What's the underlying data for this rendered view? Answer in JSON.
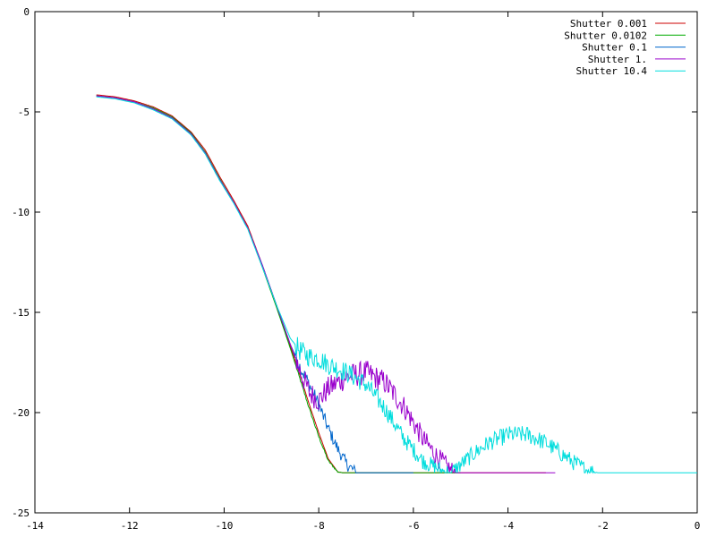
{
  "chart_data": {
    "type": "line",
    "title": "",
    "xlabel": "",
    "ylabel": "",
    "xlim": [
      -14,
      0
    ],
    "ylim": [
      -25,
      0
    ],
    "xticks": [
      -14,
      -12,
      -10,
      -8,
      -6,
      -4,
      -2,
      0
    ],
    "yticks": [
      0,
      -5,
      -10,
      -15,
      -20,
      -25
    ],
    "grid": false,
    "legend_position": "top-right",
    "series": [
      {
        "name": "Shutter 0.001",
        "color": "#cc0000",
        "noise": 0,
        "x": [
          -12.7,
          -12.3,
          -11.9,
          -11.5,
          -11.1,
          -10.7,
          -10.4,
          -10.1,
          -9.8,
          -9.5,
          -9.2,
          -8.9,
          -8.6,
          -8.4,
          -8.2,
          -8.0,
          -7.8,
          -7.6,
          -7.5,
          -3.2
        ],
        "y": [
          -4.15,
          -4.25,
          -4.45,
          -4.75,
          -5.2,
          -6.0,
          -6.9,
          -8.2,
          -9.4,
          -10.7,
          -12.6,
          -14.6,
          -16.7,
          -18.1,
          -19.6,
          -21.0,
          -22.3,
          -22.95,
          -23.0,
          -23.0
        ]
      },
      {
        "name": "Shutter 0.0102",
        "color": "#00aa00",
        "noise": 0.05,
        "x": [
          -12.7,
          -12.3,
          -11.9,
          -11.5,
          -11.1,
          -10.7,
          -10.4,
          -10.1,
          -9.8,
          -9.5,
          -9.2,
          -8.9,
          -8.6,
          -8.4,
          -8.2,
          -8.0,
          -7.8,
          -7.6,
          -7.5,
          -5.0
        ],
        "y": [
          -4.2,
          -4.3,
          -4.5,
          -4.8,
          -5.25,
          -6.05,
          -7.0,
          -8.3,
          -9.5,
          -10.8,
          -12.7,
          -14.7,
          -16.8,
          -18.3,
          -19.8,
          -21.2,
          -22.4,
          -22.95,
          -23.0,
          -23.0
        ]
      },
      {
        "name": "Shutter 0.1",
        "color": "#0066cc",
        "noise": 0.3,
        "x": [
          -12.7,
          -12.3,
          -11.9,
          -11.5,
          -11.1,
          -10.7,
          -10.4,
          -10.1,
          -9.8,
          -9.5,
          -9.2,
          -8.9,
          -8.6,
          -8.4,
          -8.2,
          -8.0,
          -7.8,
          -7.6,
          -7.4,
          -7.2,
          -6.0
        ],
        "y": [
          -4.2,
          -4.3,
          -4.5,
          -4.85,
          -5.3,
          -6.1,
          -7.05,
          -8.35,
          -9.5,
          -10.8,
          -12.6,
          -14.6,
          -16.6,
          -17.7,
          -18.6,
          -19.6,
          -20.8,
          -21.8,
          -22.6,
          -23.0,
          -23.0
        ]
      },
      {
        "name": "Shutter 1.",
        "color": "#9900cc",
        "noise": 0.5,
        "x": [
          -12.7,
          -12.3,
          -11.9,
          -11.5,
          -11.1,
          -10.7,
          -10.4,
          -10.1,
          -9.8,
          -9.5,
          -9.2,
          -8.9,
          -8.6,
          -8.4,
          -8.2,
          -8.0,
          -7.8,
          -7.4,
          -7.0,
          -6.6,
          -6.2,
          -5.8,
          -5.5,
          -5.2,
          -5.1,
          -3.0
        ],
        "y": [
          -4.2,
          -4.3,
          -4.5,
          -4.85,
          -5.3,
          -6.1,
          -7.05,
          -8.35,
          -9.5,
          -10.8,
          -12.6,
          -14.6,
          -16.6,
          -17.9,
          -19.0,
          -19.4,
          -18.8,
          -18.2,
          -18.0,
          -18.5,
          -19.7,
          -21.3,
          -22.2,
          -22.9,
          -23.0,
          -23.0
        ]
      },
      {
        "name": "Shutter 10.4",
        "color": "#00dddd",
        "noise": 0.4,
        "x": [
          -12.7,
          -12.3,
          -11.9,
          -11.5,
          -11.1,
          -10.7,
          -10.4,
          -10.1,
          -9.8,
          -9.5,
          -9.2,
          -8.9,
          -8.6,
          -8.4,
          -8.2,
          -8.0,
          -7.8,
          -7.4,
          -7.0,
          -6.6,
          -6.2,
          -5.8,
          -5.4,
          -5.2,
          -5.0,
          -4.7,
          -4.4,
          -4.0,
          -3.6,
          -3.2,
          -2.9,
          -2.6,
          -2.3,
          -2.1,
          -2.0,
          0.0
        ],
        "y": [
          -4.25,
          -4.35,
          -4.55,
          -4.9,
          -5.35,
          -6.15,
          -7.1,
          -8.4,
          -9.55,
          -10.85,
          -12.7,
          -14.6,
          -16.3,
          -16.9,
          -17.2,
          -17.3,
          -17.6,
          -18.0,
          -18.6,
          -19.8,
          -21.3,
          -22.4,
          -22.9,
          -23.0,
          -22.6,
          -22.0,
          -21.5,
          -21.1,
          -21.1,
          -21.5,
          -22.0,
          -22.5,
          -22.9,
          -23.0,
          -23.0,
          -23.0
        ]
      }
    ]
  }
}
